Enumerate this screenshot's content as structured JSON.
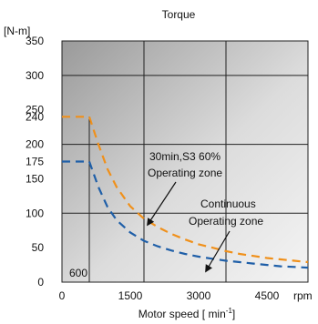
{
  "chart_data": {
    "type": "line",
    "title": "Torque",
    "ylabel": "[N-m]",
    "xlabel": "Motor speed [ min",
    "xlabel_sup": "-1",
    "xlabel_end": "]",
    "x_unit": "rpm",
    "xlim": [
      0,
      5400
    ],
    "ylim": [
      0,
      350
    ],
    "xticks": [
      0,
      1500,
      3000,
      4500
    ],
    "xtick_labels": [
      "0",
      "1500",
      "3000",
      "4500"
    ],
    "yticks": [
      0,
      50,
      100,
      150,
      175,
      200,
      240,
      250,
      300,
      350
    ],
    "ytick_labels": [
      "0",
      "50",
      "100",
      "150",
      "175",
      "200",
      "240",
      "250",
      "300",
      "350"
    ],
    "grid_x": [
      1800,
      3600
    ],
    "grid_y": [
      100,
      200,
      300
    ],
    "marker_line": {
      "x": 600,
      "label": "600"
    },
    "series": [
      {
        "name": "30min,S3 60% Operating zone",
        "color": "#f0901a",
        "points": [
          [
            0,
            240
          ],
          [
            600,
            240
          ],
          [
            800,
            200
          ],
          [
            1000,
            164
          ],
          [
            1200,
            138
          ],
          [
            1500,
            110
          ],
          [
            1800,
            92
          ],
          [
            2100,
            80
          ],
          [
            2400,
            70
          ],
          [
            2700,
            62
          ],
          [
            3000,
            55
          ],
          [
            3300,
            50
          ],
          [
            3600,
            45
          ],
          [
            3900,
            41
          ],
          [
            4200,
            38
          ],
          [
            4500,
            35
          ],
          [
            4800,
            33
          ],
          [
            5100,
            31
          ],
          [
            5400,
            29
          ]
        ]
      },
      {
        "name": "Continuous Operating zone",
        "color": "#1f5fa8",
        "points": [
          [
            0,
            175
          ],
          [
            600,
            175
          ],
          [
            800,
            138
          ],
          [
            1000,
            109
          ],
          [
            1200,
            90
          ],
          [
            1500,
            72
          ],
          [
            1800,
            60
          ],
          [
            2100,
            52
          ],
          [
            2400,
            46
          ],
          [
            2700,
            41
          ],
          [
            3000,
            37
          ],
          [
            3300,
            34
          ],
          [
            3600,
            31
          ],
          [
            3900,
            29
          ],
          [
            4200,
            27
          ],
          [
            4500,
            25
          ],
          [
            4800,
            23
          ],
          [
            5100,
            22
          ],
          [
            5400,
            21
          ]
        ]
      }
    ],
    "annotations": [
      {
        "lines": [
          "30min,S3 60%",
          "Operating zone"
        ]
      },
      {
        "lines": [
          "Continuous",
          "Operating zone"
        ]
      }
    ]
  }
}
